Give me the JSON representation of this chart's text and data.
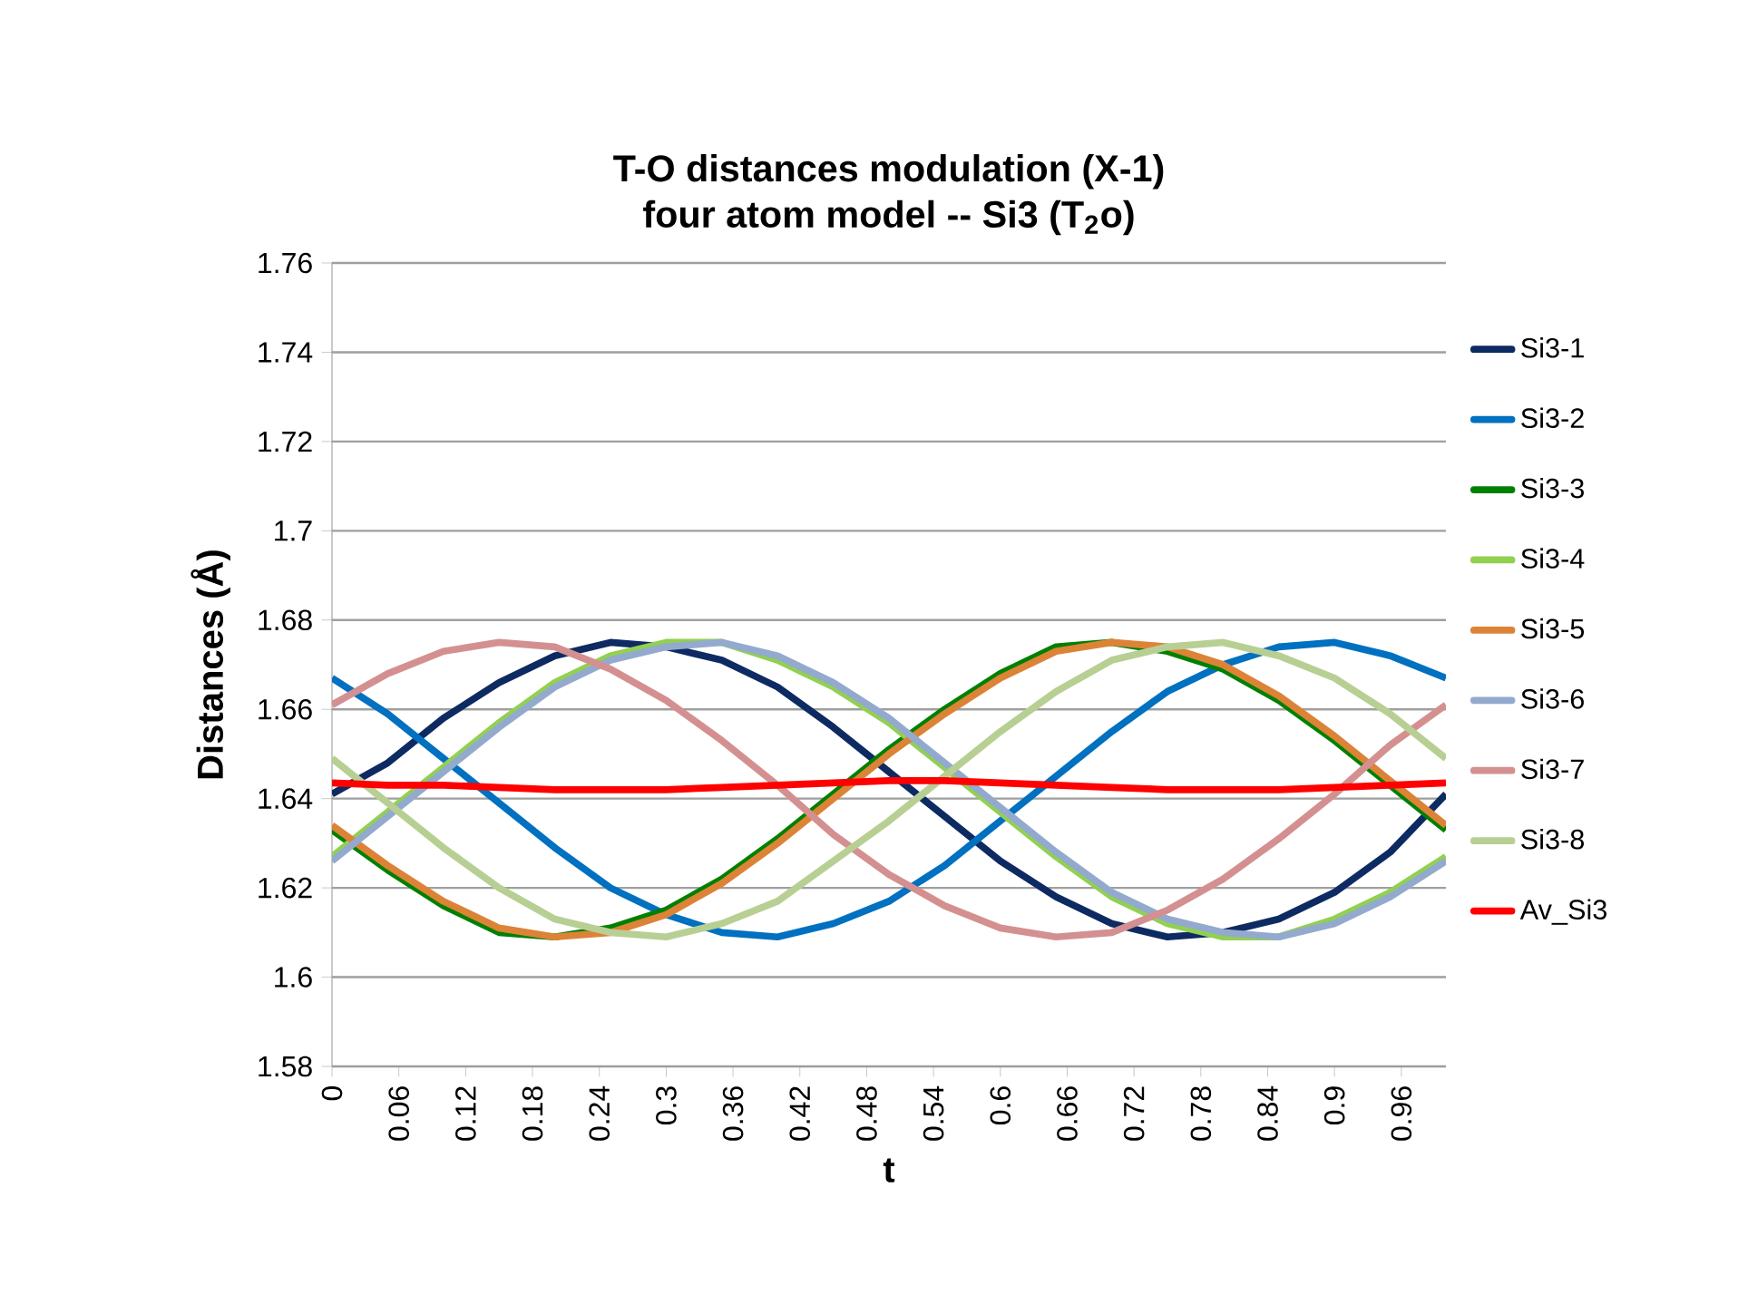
{
  "chart_data": {
    "type": "line",
    "title": "T-O distances modulation (X-1)\nfour atom model -- Si3 (T$_{2}$o)",
    "xlabel": "t",
    "ylabel": "Distances (Å)",
    "xlim": [
      0,
      1
    ],
    "xticks": [
      0,
      0.06,
      0.12,
      0.18,
      0.24,
      0.3,
      0.36,
      0.42,
      0.48,
      0.54,
      0.6,
      0.66,
      0.72,
      0.78,
      0.84,
      0.9,
      0.96
    ],
    "ylim": [
      1.58,
      1.76
    ],
    "yticks": [
      1.58,
      1.6,
      1.62,
      1.64,
      1.66,
      1.68,
      1.7,
      1.72,
      1.74,
      1.76
    ],
    "grid": "y",
    "legend": "right",
    "marker": "none",
    "line_style": "solid",
    "x": [
      0,
      0.05,
      0.1,
      0.15,
      0.2,
      0.25,
      0.3,
      0.35,
      0.4,
      0.45,
      0.5,
      0.55,
      0.6,
      0.65,
      0.7,
      0.75,
      0.8,
      0.85,
      0.9,
      0.95,
      1
    ],
    "series": [
      {
        "name": "Si3-1",
        "color": "#0e2a62",
        "values": [
          1.641,
          1.648,
          1.658,
          1.666,
          1.672,
          1.675,
          1.674,
          1.671,
          1.665,
          1.656,
          1.646,
          1.636,
          1.626,
          1.618,
          1.612,
          1.609,
          1.61,
          1.613,
          1.619,
          1.628,
          1.641
        ]
      },
      {
        "name": "Si3-2",
        "color": "#0070c0",
        "values": [
          1.667,
          1.659,
          1.649,
          1.639,
          1.629,
          1.62,
          1.614,
          1.61,
          1.609,
          1.612,
          1.617,
          1.625,
          1.635,
          1.645,
          1.655,
          1.664,
          1.67,
          1.674,
          1.675,
          1.672,
          1.667
        ]
      },
      {
        "name": "Si3-3",
        "color": "#008000",
        "values": [
          1.633,
          1.624,
          1.616,
          1.61,
          1.609,
          1.611,
          1.615,
          1.622,
          1.631,
          1.641,
          1.651,
          1.66,
          1.668,
          1.674,
          1.675,
          1.673,
          1.669,
          1.662,
          1.653,
          1.643,
          1.633
        ]
      },
      {
        "name": "Si3-4",
        "color": "#92d050",
        "values": [
          1.627,
          1.637,
          1.647,
          1.657,
          1.666,
          1.672,
          1.675,
          1.675,
          1.671,
          1.665,
          1.657,
          1.647,
          1.637,
          1.627,
          1.618,
          1.612,
          1.609,
          1.609,
          1.613,
          1.619,
          1.627
        ]
      },
      {
        "name": "Si3-5",
        "color": "#dc8338",
        "values": [
          1.634,
          1.625,
          1.617,
          1.611,
          1.609,
          1.61,
          1.614,
          1.621,
          1.63,
          1.64,
          1.65,
          1.659,
          1.667,
          1.673,
          1.675,
          1.674,
          1.67,
          1.663,
          1.654,
          1.644,
          1.634
        ]
      },
      {
        "name": "Si3-6",
        "color": "#93aace",
        "values": [
          1.626,
          1.636,
          1.646,
          1.656,
          1.665,
          1.671,
          1.674,
          1.675,
          1.672,
          1.666,
          1.658,
          1.648,
          1.638,
          1.628,
          1.619,
          1.613,
          1.61,
          1.609,
          1.612,
          1.618,
          1.626
        ]
      },
      {
        "name": "Si3-7",
        "color": "#d49090",
        "values": [
          1.661,
          1.668,
          1.673,
          1.675,
          1.674,
          1.669,
          1.662,
          1.653,
          1.643,
          1.632,
          1.623,
          1.616,
          1.611,
          1.609,
          1.61,
          1.615,
          1.622,
          1.631,
          1.641,
          1.652,
          1.661
        ]
      },
      {
        "name": "Si3-8",
        "color": "#b8cf94",
        "values": [
          1.649,
          1.639,
          1.629,
          1.62,
          1.613,
          1.61,
          1.609,
          1.612,
          1.617,
          1.626,
          1.635,
          1.645,
          1.655,
          1.664,
          1.671,
          1.674,
          1.675,
          1.672,
          1.667,
          1.659,
          1.649
        ]
      },
      {
        "name": "Av_Si3",
        "color": "#ff0000",
        "values": [
          1.6435,
          1.643,
          1.643,
          1.6425,
          1.642,
          1.642,
          1.642,
          1.6425,
          1.643,
          1.6435,
          1.644,
          1.644,
          1.6435,
          1.643,
          1.6425,
          1.642,
          1.642,
          1.642,
          1.6425,
          1.643,
          1.6435
        ]
      }
    ]
  }
}
